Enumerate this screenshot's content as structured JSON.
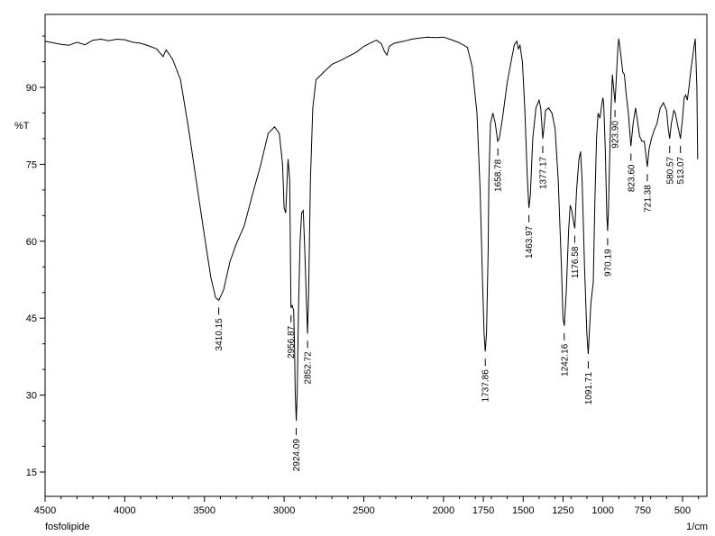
{
  "chart_data": {
    "type": "line",
    "title": "",
    "xlabel": "1/cm",
    "ylabel": "%T",
    "xlim": [
      4500,
      400
    ],
    "ylim": [
      9,
      103
    ],
    "x_reversed": true,
    "grid": false,
    "legend": "none",
    "line_color": "#000000",
    "x_ticks": [
      4500,
      4000,
      3500,
      3000,
      2500,
      2000,
      1750,
      1500,
      1250,
      1000,
      750,
      500
    ],
    "y_ticks": [
      15,
      30,
      45,
      60,
      75,
      90
    ],
    "series": [
      {
        "values": [
          [
            4500,
            99.0
          ],
          [
            4450,
            98.7
          ],
          [
            4400,
            98.4
          ],
          [
            4350,
            98.2
          ],
          [
            4300,
            98.8
          ],
          [
            4250,
            98.3
          ],
          [
            4200,
            99.2
          ],
          [
            4150,
            99.4
          ],
          [
            4100,
            99.1
          ],
          [
            4050,
            99.4
          ],
          [
            4000,
            99.3
          ],
          [
            3950,
            98.8
          ],
          [
            3900,
            98.6
          ],
          [
            3850,
            98.1
          ],
          [
            3800,
            97.5
          ],
          [
            3760,
            96.0
          ],
          [
            3740,
            97.3
          ],
          [
            3700,
            95.5
          ],
          [
            3650,
            91.5
          ],
          [
            3600,
            82.0
          ],
          [
            3550,
            71.5
          ],
          [
            3500,
            61.0
          ],
          [
            3460,
            53.0
          ],
          [
            3430,
            49.0
          ],
          [
            3410,
            48.5
          ],
          [
            3380,
            50.5
          ],
          [
            3340,
            56.0
          ],
          [
            3300,
            59.5
          ],
          [
            3250,
            63.0
          ],
          [
            3200,
            69.0
          ],
          [
            3150,
            74.5
          ],
          [
            3100,
            81.0
          ],
          [
            3060,
            82.3
          ],
          [
            3030,
            81.0
          ],
          [
            3010,
            75.0
          ],
          [
            3000,
            66.5
          ],
          [
            2990,
            65.5
          ],
          [
            2980,
            73.0
          ],
          [
            2975,
            76.0
          ],
          [
            2965,
            72.0
          ],
          [
            2957,
            47.0
          ],
          [
            2950,
            47.5
          ],
          [
            2940,
            46.5
          ],
          [
            2935,
            40.0
          ],
          [
            2930,
            30.0
          ],
          [
            2924,
            25.0
          ],
          [
            2918,
            30.0
          ],
          [
            2910,
            46.0
          ],
          [
            2900,
            60.0
          ],
          [
            2890,
            65.5
          ],
          [
            2880,
            66.0
          ],
          [
            2870,
            58.0
          ],
          [
            2860,
            48.0
          ],
          [
            2853,
            42.0
          ],
          [
            2846,
            50.0
          ],
          [
            2835,
            72.0
          ],
          [
            2820,
            86.0
          ],
          [
            2800,
            91.5
          ],
          [
            2750,
            93.0
          ],
          [
            2700,
            94.5
          ],
          [
            2650,
            95.2
          ],
          [
            2600,
            96.0
          ],
          [
            2550,
            96.8
          ],
          [
            2500,
            98.0
          ],
          [
            2450,
            98.8
          ],
          [
            2420,
            99.2
          ],
          [
            2390,
            98.5
          ],
          [
            2370,
            97.0
          ],
          [
            2355,
            96.3
          ],
          [
            2340,
            98.0
          ],
          [
            2310,
            98.6
          ],
          [
            2250,
            99.0
          ],
          [
            2200,
            99.4
          ],
          [
            2150,
            99.6
          ],
          [
            2100,
            99.8
          ],
          [
            2050,
            99.7
          ],
          [
            2000,
            99.8
          ],
          [
            1950,
            99.3
          ],
          [
            1900,
            98.7
          ],
          [
            1850,
            97.8
          ],
          [
            1820,
            94.0
          ],
          [
            1790,
            85.0
          ],
          [
            1770,
            70.0
          ],
          [
            1755,
            52.0
          ],
          [
            1745,
            42.0
          ],
          [
            1738,
            38.5
          ],
          [
            1730,
            42.0
          ],
          [
            1720,
            58.0
          ],
          [
            1715,
            72.0
          ],
          [
            1705,
            83.0
          ],
          [
            1690,
            85.0
          ],
          [
            1675,
            83.0
          ],
          [
            1660,
            79.5
          ],
          [
            1650,
            80.0
          ],
          [
            1630,
            84.0
          ],
          [
            1600,
            91.0
          ],
          [
            1570,
            96.0
          ],
          [
            1555,
            98.3
          ],
          [
            1540,
            99.0
          ],
          [
            1530,
            97.5
          ],
          [
            1520,
            98.2
          ],
          [
            1505,
            95.0
          ],
          [
            1490,
            86.0
          ],
          [
            1475,
            73.0
          ],
          [
            1464,
            66.5
          ],
          [
            1455,
            69.0
          ],
          [
            1440,
            80.0
          ],
          [
            1420,
            86.0
          ],
          [
            1400,
            87.5
          ],
          [
            1390,
            86.0
          ],
          [
            1377,
            80.0
          ],
          [
            1370,
            82.0
          ],
          [
            1360,
            85.5
          ],
          [
            1340,
            86.0
          ],
          [
            1320,
            85.0
          ],
          [
            1300,
            82.0
          ],
          [
            1280,
            72.0
          ],
          [
            1260,
            55.0
          ],
          [
            1250,
            45.0
          ],
          [
            1242,
            43.5
          ],
          [
            1230,
            50.0
          ],
          [
            1215,
            62.0
          ],
          [
            1205,
            67.0
          ],
          [
            1195,
            66.0
          ],
          [
            1185,
            64.0
          ],
          [
            1176,
            62.5
          ],
          [
            1165,
            70.0
          ],
          [
            1150,
            76.0
          ],
          [
            1140,
            77.5
          ],
          [
            1130,
            72.0
          ],
          [
            1115,
            55.0
          ],
          [
            1100,
            42.0
          ],
          [
            1092,
            38.0
          ],
          [
            1085,
            42.0
          ],
          [
            1075,
            48.0
          ],
          [
            1060,
            52.0
          ],
          [
            1050,
            68.0
          ],
          [
            1040,
            80.0
          ],
          [
            1030,
            85.0
          ],
          [
            1018,
            84.0
          ],
          [
            1010,
            86.0
          ],
          [
            1000,
            88.0
          ],
          [
            995,
            87.0
          ],
          [
            985,
            78.0
          ],
          [
            975,
            65.0
          ],
          [
            970,
            62.0
          ],
          [
            965,
            66.0
          ],
          [
            958,
            75.0
          ],
          [
            950,
            85.0
          ],
          [
            940,
            92.5
          ],
          [
            930,
            89.0
          ],
          [
            924,
            87.0
          ],
          [
            915,
            92.0
          ],
          [
            905,
            98.0
          ],
          [
            900,
            99.5
          ],
          [
            890,
            97.0
          ],
          [
            875,
            93.0
          ],
          [
            865,
            92.5
          ],
          [
            855,
            89.0
          ],
          [
            840,
            85.0
          ],
          [
            824,
            78.5
          ],
          [
            810,
            83.0
          ],
          [
            795,
            86.0
          ],
          [
            785,
            84.0
          ],
          [
            770,
            80.5
          ],
          [
            755,
            79.5
          ],
          [
            740,
            79.5
          ],
          [
            730,
            77.0
          ],
          [
            721,
            74.5
          ],
          [
            710,
            78.0
          ],
          [
            695,
            80.0
          ],
          [
            680,
            81.5
          ],
          [
            660,
            83.0
          ],
          [
            640,
            86.0
          ],
          [
            620,
            87.0
          ],
          [
            600,
            85.5
          ],
          [
            590,
            82.0
          ],
          [
            581,
            80.0
          ],
          [
            570,
            83.0
          ],
          [
            555,
            85.5
          ],
          [
            545,
            85.0
          ],
          [
            530,
            82.5
          ],
          [
            513,
            80.0
          ],
          [
            500,
            84.0
          ],
          [
            490,
            88.0
          ],
          [
            480,
            88.5
          ],
          [
            470,
            87.5
          ],
          [
            460,
            90.0
          ],
          [
            445,
            94.0
          ],
          [
            430,
            97.5
          ],
          [
            420,
            99.5
          ],
          [
            410,
            90.0
          ],
          [
            405,
            76.0
          ]
        ]
      }
    ],
    "annotations": [
      {
        "label": "3410.15",
        "x": 3410.15,
        "y": 48.5
      },
      {
        "label": "2956.87",
        "x": 2956.87,
        "y": 47.0
      },
      {
        "label": "2924.09",
        "x": 2924.09,
        "y": 25.0
      },
      {
        "label": "2852.72",
        "x": 2852.72,
        "y": 42.0
      },
      {
        "label": "1737.86",
        "x": 1737.86,
        "y": 38.5
      },
      {
        "label": "1658.78",
        "x": 1658.78,
        "y": 79.5
      },
      {
        "label": "1463.97",
        "x": 1463.97,
        "y": 66.5
      },
      {
        "label": "1377.17",
        "x": 1377.17,
        "y": 80.0
      },
      {
        "label": "1242.16",
        "x": 1242.16,
        "y": 43.5
      },
      {
        "label": "1176.58",
        "x": 1176.58,
        "y": 62.5
      },
      {
        "label": "1091.71",
        "x": 1091.71,
        "y": 38.0
      },
      {
        "label": "970.19",
        "x": 970.19,
        "y": 62.0
      },
      {
        "label": "923.90",
        "x": 923.9,
        "y": 87.0
      },
      {
        "label": "823.60",
        "x": 823.6,
        "y": 78.5
      },
      {
        "label": "721.38",
        "x": 721.38,
        "y": 74.5
      },
      {
        "label": "580.57",
        "x": 580.57,
        "y": 80.0
      },
      {
        "label": "513.07",
        "x": 513.07,
        "y": 80.0
      }
    ]
  },
  "footer": {
    "sample_name": "fosfolipide",
    "x_unit": "1/cm"
  }
}
